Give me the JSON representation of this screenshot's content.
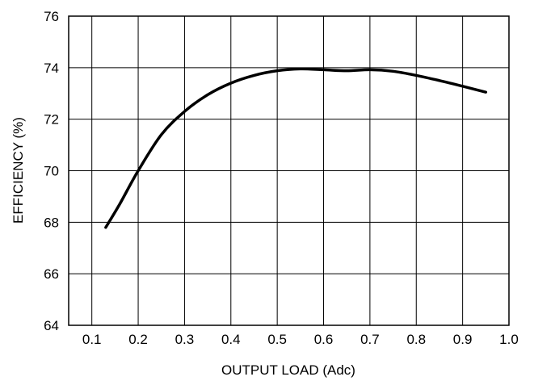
{
  "chart_data": {
    "type": "line",
    "xlabel": "OUTPUT LOAD (Adc)",
    "ylabel": "EFFICIENCY (%)",
    "xlim": [
      0.05,
      1.0
    ],
    "ylim": [
      64,
      76
    ],
    "xticks": [
      0.1,
      0.2,
      0.3,
      0.4,
      0.5,
      0.6,
      0.7,
      0.8,
      0.9,
      1.0
    ],
    "xtick_labels": [
      "0.1",
      "0.2",
      "0.3",
      "0.4",
      "0.5",
      "0.6",
      "0.7",
      "0.8",
      "0.9",
      "1.0"
    ],
    "yticks": [
      64,
      66,
      68,
      70,
      72,
      74,
      76
    ],
    "ytick_labels": [
      "64",
      "66",
      "68",
      "70",
      "72",
      "74",
      "76"
    ],
    "grid": true,
    "series": [
      {
        "x": [
          0.13,
          0.16,
          0.2,
          0.25,
          0.3,
          0.35,
          0.4,
          0.45,
          0.5,
          0.55,
          0.6,
          0.65,
          0.7,
          0.75,
          0.8,
          0.85,
          0.9,
          0.95
        ],
        "y": [
          67.8,
          68.7,
          70.0,
          71.4,
          72.3,
          72.95,
          73.4,
          73.7,
          73.88,
          73.95,
          73.92,
          73.88,
          73.92,
          73.86,
          73.7,
          73.5,
          73.28,
          73.05
        ]
      }
    ]
  }
}
